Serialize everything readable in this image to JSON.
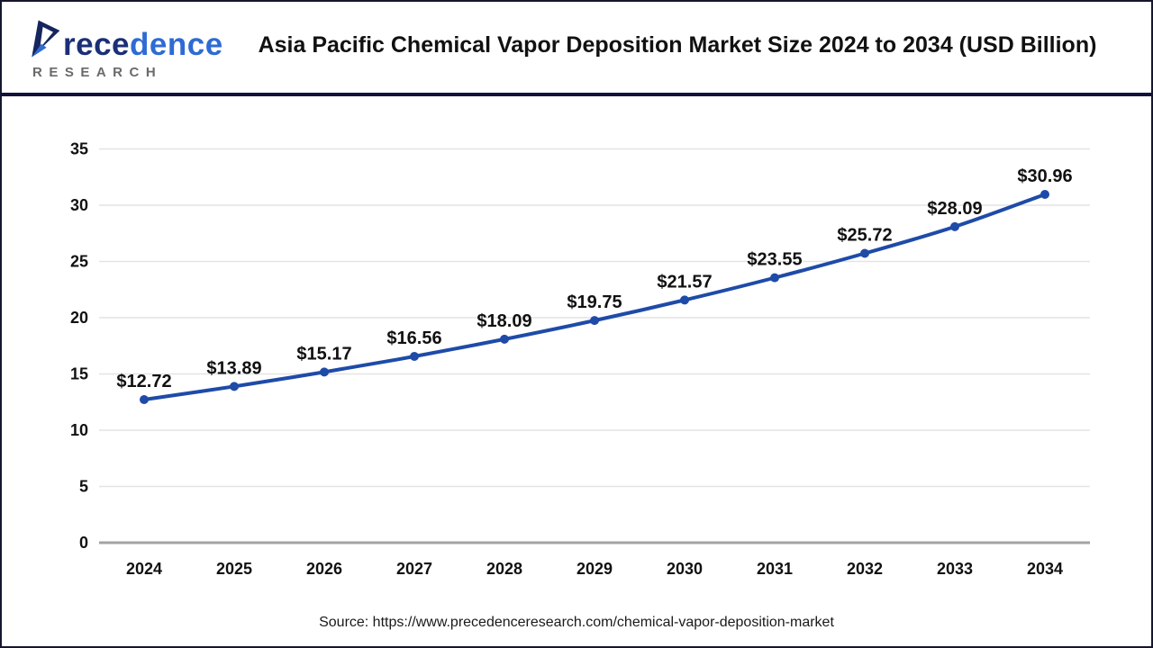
{
  "header": {
    "logo": {
      "brand": "Precedence",
      "brand_part1": "rece",
      "brand_part2": "dence",
      "sub": "RESEARCH",
      "plane_dark": "#16255e",
      "plane_accent": "#2e6bd4"
    },
    "title": "Asia Pacific Chemical Vapor Deposition Market Size 2024 to 2034 (USD Billion)"
  },
  "chart_data": {
    "type": "line",
    "title": "Asia Pacific Chemical Vapor Deposition Market Size 2024 to 2034 (USD Billion)",
    "categories": [
      "2024",
      "2025",
      "2026",
      "2027",
      "2028",
      "2029",
      "2030",
      "2031",
      "2032",
      "2033",
      "2034"
    ],
    "values": [
      12.72,
      13.89,
      15.17,
      16.56,
      18.09,
      19.75,
      21.57,
      23.55,
      25.72,
      28.09,
      30.96
    ],
    "point_labels": [
      "$12.72",
      "$13.89",
      "$15.17",
      "$16.56",
      "$18.09",
      "$19.75",
      "$21.57",
      "$23.55",
      "$25.72",
      "$28.09",
      "$30.96"
    ],
    "xlabel": "",
    "ylabel": "",
    "ylim": [
      0,
      35
    ],
    "yticks": [
      0,
      5,
      10,
      15,
      20,
      25,
      30,
      35
    ],
    "grid": true,
    "legend": "none",
    "line_color": "#1e4ba8",
    "grid_color": "#e4e4e4",
    "axis_line_color": "#a3a3a3",
    "label_color": "#111111"
  },
  "footer": {
    "source": "Source: https://www.precedenceresearch.com/chemical-vapor-deposition-market"
  }
}
